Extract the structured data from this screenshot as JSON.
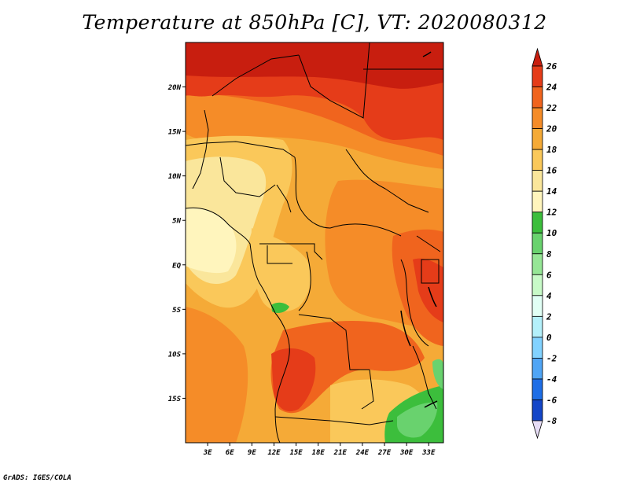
{
  "title": "Temperature at 850hPa [C], VT: 2020080312",
  "credit": "GrADS: IGES/COLA",
  "map": {
    "lat_labels": [
      "20N",
      "15N",
      "10N",
      "5N",
      "EQ",
      "5S",
      "10S",
      "15S"
    ],
    "lon_labels": [
      "3E",
      "6E",
      "9E",
      "12E",
      "15E",
      "18E",
      "21E",
      "24E",
      "27E",
      "30E",
      "33E"
    ],
    "lat_values": [
      20,
      15,
      10,
      5,
      0,
      -5,
      -10,
      -15
    ],
    "lon_values": [
      3,
      6,
      9,
      12,
      15,
      18,
      21,
      24,
      27,
      30,
      33
    ],
    "lat_range": [
      -20,
      25
    ],
    "lon_range": [
      0,
      35
    ]
  },
  "colorbar": {
    "labels": [
      "26",
      "24",
      "22",
      "20",
      "18",
      "16",
      "14",
      "12",
      "10",
      "8",
      "6",
      "4",
      "2",
      "0",
      "-2",
      "-4",
      "-6",
      "-8"
    ],
    "colors": [
      "#c81e0f",
      "#e53c19",
      "#f0641e",
      "#f58c28",
      "#f5aa37",
      "#fac85a",
      "#fae69b",
      "#fff5bd",
      "#3cbe3c",
      "#69d26e",
      "#96e696",
      "#c8fac8",
      "#e1fff5",
      "#b4f0fa",
      "#82d2ff",
      "#50a5f5",
      "#1e6ee6",
      "#1446c8",
      "#0a1e96",
      "#e6dcf5"
    ]
  }
}
